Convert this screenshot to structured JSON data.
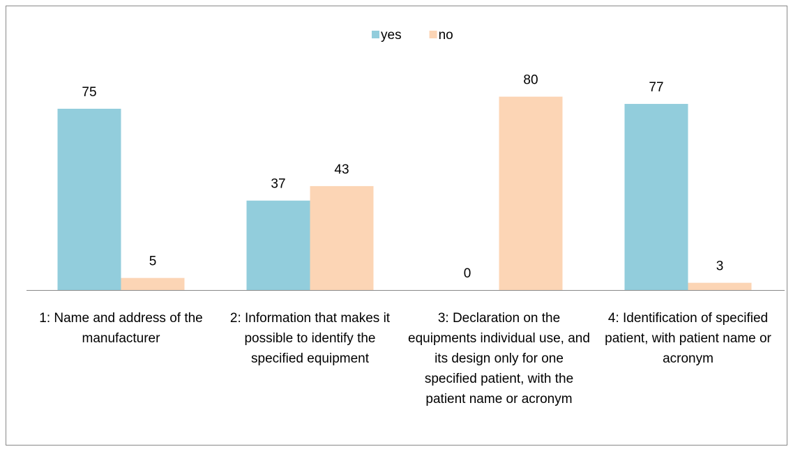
{
  "chart_data": {
    "type": "bar",
    "categories": [
      "1: Name and address of the manufacturer",
      "2: Information that makes it possible to identify the specified equipment",
      "3: Declaration on the equipments individual use, and its design only for one specified patient, with the patient name or acronym",
      "4: Identification of specified patient, with patient name or acronym"
    ],
    "series": [
      {
        "name": "yes",
        "color": "#92cddc",
        "values": [
          75,
          37,
          0,
          77
        ]
      },
      {
        "name": "no",
        "color": "#fcd5b5",
        "values": [
          5,
          43,
          80,
          3
        ]
      }
    ],
    "legend": "top"
  }
}
